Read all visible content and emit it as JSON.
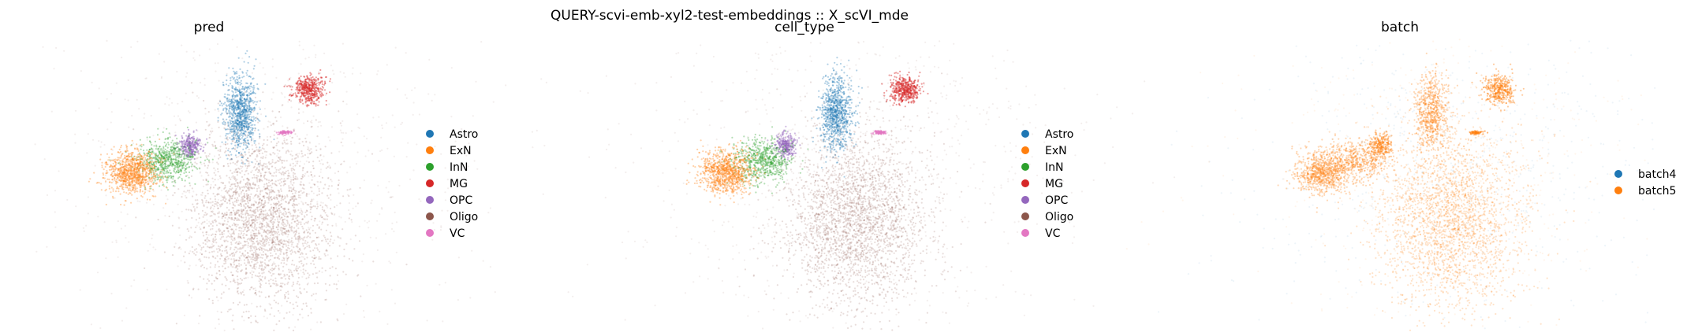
{
  "figure": {
    "suptitle": "QUERY-scvi-emb-xyl2-test-embeddings :: X_scVI_mde"
  },
  "chart_data": [
    {
      "type": "scatter",
      "title": "pred",
      "xlabel": "",
      "ylabel": "",
      "grid": false,
      "axes_visible": false,
      "legend_placement": "right",
      "categories": [
        "Astro",
        "ExN",
        "InN",
        "MG",
        "OPC",
        "Oligo",
        "VC"
      ],
      "colors": [
        "#1f77b4",
        "#ff7f0e",
        "#2ca02c",
        "#d62728",
        "#9467bd",
        "#8c564b",
        "#e377c2"
      ],
      "clusters": [
        {
          "category": "Oligo",
          "x": 0.15,
          "y": -0.85,
          "sx": 0.6,
          "sy": 0.75,
          "n": 2600,
          "alpha": 0.2
        },
        {
          "category": "Oligo",
          "x": 0.15,
          "y": 0.05,
          "sx": 1.8,
          "sy": 1.4,
          "n": 900,
          "alpha": 0.1
        },
        {
          "category": "Astro",
          "x": -0.2,
          "y": 0.95,
          "sx": 0.13,
          "sy": 0.32,
          "n": 900,
          "alpha": 0.35
        },
        {
          "category": "MG",
          "x": 0.95,
          "y": 1.35,
          "sx": 0.13,
          "sy": 0.12,
          "n": 450,
          "alpha": 0.45
        },
        {
          "category": "VC",
          "x": 0.55,
          "y": 0.62,
          "sx": 0.06,
          "sy": 0.015,
          "n": 80,
          "alpha": 0.6
        },
        {
          "category": "OPC",
          "x": -1.05,
          "y": 0.4,
          "sx": 0.09,
          "sy": 0.1,
          "n": 300,
          "alpha": 0.45
        },
        {
          "category": "InN",
          "x": -1.45,
          "y": 0.15,
          "sx": 0.25,
          "sy": 0.18,
          "n": 650,
          "alpha": 0.35
        },
        {
          "category": "ExN",
          "x": -2.05,
          "y": -0.05,
          "sx": 0.22,
          "sy": 0.18,
          "n": 950,
          "alpha": 0.35
        }
      ]
    },
    {
      "type": "scatter",
      "title": "cell_type",
      "xlabel": "",
      "ylabel": "",
      "grid": false,
      "axes_visible": false,
      "legend_placement": "right",
      "categories": [
        "Astro",
        "ExN",
        "InN",
        "MG",
        "OPC",
        "Oligo",
        "VC"
      ],
      "colors": [
        "#1f77b4",
        "#ff7f0e",
        "#2ca02c",
        "#d62728",
        "#9467bd",
        "#8c564b",
        "#e377c2"
      ],
      "clusters": [
        {
          "category": "Oligo",
          "x": 0.15,
          "y": -0.85,
          "sx": 0.6,
          "sy": 0.75,
          "n": 2600,
          "alpha": 0.2
        },
        {
          "category": "Oligo",
          "x": 0.15,
          "y": 0.05,
          "sx": 1.8,
          "sy": 1.4,
          "n": 900,
          "alpha": 0.1
        },
        {
          "category": "Astro",
          "x": -0.2,
          "y": 0.95,
          "sx": 0.13,
          "sy": 0.32,
          "n": 900,
          "alpha": 0.35
        },
        {
          "category": "MG",
          "x": 0.95,
          "y": 1.35,
          "sx": 0.13,
          "sy": 0.12,
          "n": 450,
          "alpha": 0.45
        },
        {
          "category": "VC",
          "x": 0.55,
          "y": 0.62,
          "sx": 0.06,
          "sy": 0.015,
          "n": 80,
          "alpha": 0.6
        },
        {
          "category": "OPC",
          "x": -1.05,
          "y": 0.4,
          "sx": 0.09,
          "sy": 0.1,
          "n": 300,
          "alpha": 0.45
        },
        {
          "category": "InN",
          "x": -1.45,
          "y": 0.15,
          "sx": 0.25,
          "sy": 0.18,
          "n": 650,
          "alpha": 0.35
        },
        {
          "category": "ExN",
          "x": -2.05,
          "y": -0.05,
          "sx": 0.22,
          "sy": 0.18,
          "n": 950,
          "alpha": 0.35
        }
      ]
    },
    {
      "type": "scatter",
      "title": "batch",
      "xlabel": "",
      "ylabel": "",
      "grid": false,
      "axes_visible": false,
      "legend_placement": "right",
      "categories": [
        "batch4",
        "batch5"
      ],
      "colors": [
        "#1f77b4",
        "#ff7f0e"
      ],
      "clusters": [
        {
          "category": "batch4",
          "x": 0.15,
          "y": 0.05,
          "sx": 1.8,
          "sy": 1.4,
          "n": 700,
          "alpha": 0.08
        },
        {
          "category": "batch5",
          "x": 0.15,
          "y": -0.85,
          "sx": 0.6,
          "sy": 0.75,
          "n": 2600,
          "alpha": 0.22
        },
        {
          "category": "batch5",
          "x": -0.2,
          "y": 0.95,
          "sx": 0.13,
          "sy": 0.32,
          "n": 700,
          "alpha": 0.3
        },
        {
          "category": "batch5",
          "x": 0.95,
          "y": 1.35,
          "sx": 0.13,
          "sy": 0.12,
          "n": 400,
          "alpha": 0.4
        },
        {
          "category": "batch5",
          "x": 0.55,
          "y": 0.62,
          "sx": 0.06,
          "sy": 0.015,
          "n": 60,
          "alpha": 0.55
        },
        {
          "category": "batch5",
          "x": -1.05,
          "y": 0.4,
          "sx": 0.09,
          "sy": 0.1,
          "n": 250,
          "alpha": 0.4
        },
        {
          "category": "batch5",
          "x": -1.45,
          "y": 0.15,
          "sx": 0.25,
          "sy": 0.18,
          "n": 550,
          "alpha": 0.3
        },
        {
          "category": "batch5",
          "x": -2.05,
          "y": -0.05,
          "sx": 0.22,
          "sy": 0.18,
          "n": 850,
          "alpha": 0.3
        },
        {
          "category": "batch5",
          "x": 0.15,
          "y": 0.05,
          "sx": 1.8,
          "sy": 1.4,
          "n": 500,
          "alpha": 0.08
        }
      ]
    }
  ]
}
